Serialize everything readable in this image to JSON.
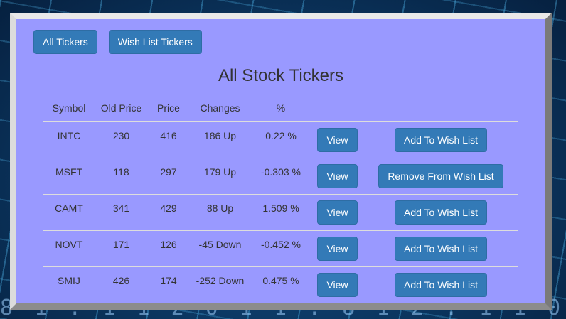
{
  "tabs": {
    "all": "All Tickers",
    "wish": "Wish List Tickers"
  },
  "title": "All Stock Tickers",
  "columns": [
    "Symbol",
    "Old Price",
    "Price",
    "Changes",
    "%"
  ],
  "rows": [
    {
      "symbol": "INTC",
      "old_price": "230",
      "price": "416",
      "changes": "186 Up",
      "percent": "0.22 %",
      "view": "View",
      "wish_action": "Add To Wish List"
    },
    {
      "symbol": "MSFT",
      "old_price": "118",
      "price": "297",
      "changes": "179 Up",
      "percent": "-0.303 %",
      "view": "View",
      "wish_action": "Remove From Wish List"
    },
    {
      "symbol": "CAMT",
      "old_price": "341",
      "price": "429",
      "changes": "88 Up",
      "percent": "1.509 %",
      "view": "View",
      "wish_action": "Add To Wish List"
    },
    {
      "symbol": "NOVT",
      "old_price": "171",
      "price": "126",
      "changes": "-45 Down",
      "percent": "-0.452 %",
      "view": "View",
      "wish_action": "Add To Wish List"
    },
    {
      "symbol": "SMIJ",
      "old_price": "426",
      "price": "174",
      "changes": "-252 Down",
      "percent": "0.475 %",
      "view": "View",
      "wish_action": "Add To Wish List"
    }
  ],
  "colors": {
    "panel": "#9999ff",
    "button": "#337ab7"
  }
}
